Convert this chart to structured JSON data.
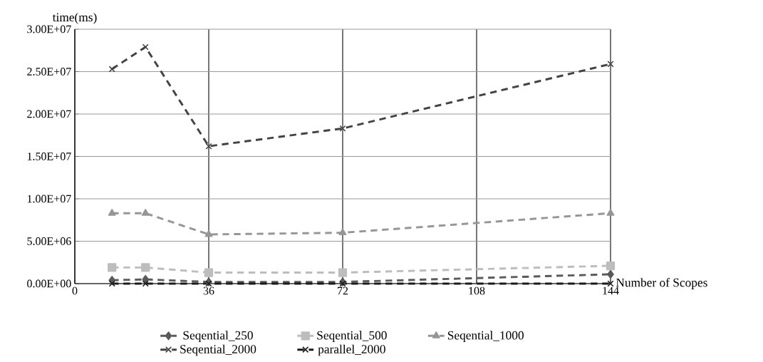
{
  "chart_data": {
    "type": "line",
    "xlabel": "Number of Scopes",
    "ylabel": "time(ms)",
    "x": [
      10,
      19,
      36,
      72,
      144
    ],
    "xlim": [
      0,
      144
    ],
    "xticks": [
      0,
      36,
      72,
      108,
      144
    ],
    "ylim": [
      0,
      30000000
    ],
    "yticks": [
      {
        "value": 0,
        "label": "0.00E+00"
      },
      {
        "value": 5000000,
        "label": "5.00E+06"
      },
      {
        "value": 10000000,
        "label": "1.00E+07"
      },
      {
        "value": 15000000,
        "label": "1.50E+07"
      },
      {
        "value": 20000000,
        "label": "2.00E+07"
      },
      {
        "value": 25000000,
        "label": "2.50E+07"
      },
      {
        "value": 30000000,
        "label": "3.00E+07"
      }
    ],
    "grid": true,
    "legend": "bottom",
    "line_style": "dashed",
    "series": [
      {
        "name": "Seqential_250",
        "color": "#5a5a5a",
        "marker": "diamond",
        "values": [
          400000,
          500000,
          200000,
          200000,
          1100000
        ]
      },
      {
        "name": "Seqential_500",
        "color": "#bdbdbd",
        "marker": "square",
        "values": [
          1900000,
          1900000,
          1300000,
          1300000,
          2100000
        ]
      },
      {
        "name": "Seqential_1000",
        "color": "#969696",
        "marker": "triangle",
        "values": [
          8300000,
          8300000,
          5800000,
          6000000,
          8300000
        ]
      },
      {
        "name": "Seqential_2000",
        "color": "#434343",
        "marker": "cross",
        "values": [
          25300000,
          27900000,
          16200000,
          18300000,
          25900000
        ]
      },
      {
        "name": "parallel_2000",
        "color": "#1a1a1a",
        "marker": "cross",
        "values": [
          0,
          0,
          0,
          0,
          0
        ]
      }
    ]
  }
}
